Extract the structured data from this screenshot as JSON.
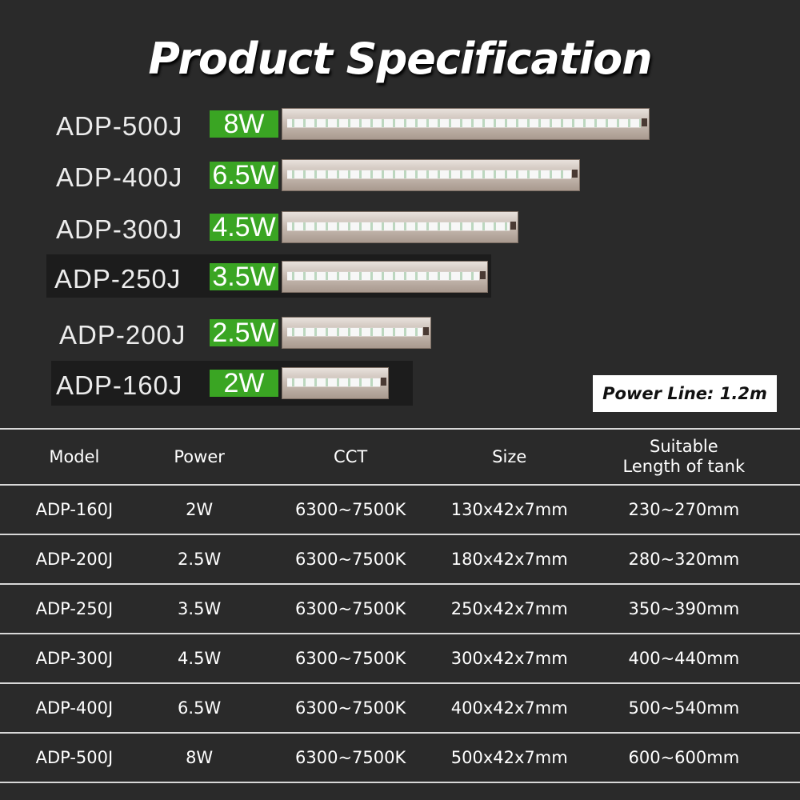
{
  "title": "Product Specification",
  "products": [
    {
      "model": "ADP-500J",
      "power": "8W"
    },
    {
      "model": "ADP-400J",
      "power": "6.5W"
    },
    {
      "model": "ADP-300J",
      "power": "4.5W"
    },
    {
      "model": "ADP-250J",
      "power": "3.5W"
    },
    {
      "model": "ADP-200J",
      "power": "2.5W"
    },
    {
      "model": "ADP-160J",
      "power": "2W"
    }
  ],
  "power_line": "Power Line: 1.2m",
  "table": {
    "headers": [
      "Model",
      "Power",
      "CCT",
      "Size",
      "Suitable\nLength of tank"
    ],
    "rows": [
      [
        "ADP-160J",
        "2W",
        "6300~7500K",
        "130x42x7mm",
        "230~270mm"
      ],
      [
        "ADP-200J",
        "2.5W",
        "6300~7500K",
        "180x42x7mm",
        "280~320mm"
      ],
      [
        "ADP-250J",
        "3.5W",
        "6300~7500K",
        "250x42x7mm",
        "350~390mm"
      ],
      [
        "ADP-300J",
        "4.5W",
        "6300~7500K",
        "300x42x7mm",
        "400~440mm"
      ],
      [
        "ADP-400J",
        "6.5W",
        "6300~7500K",
        "400x42x7mm",
        "500~540mm"
      ],
      [
        "ADP-500J",
        "8W",
        "6300~7500K",
        "500x42x7mm",
        "600~600mm"
      ]
    ]
  },
  "colors": {
    "background": "#2a2a2a",
    "badge": "#3aa523",
    "text": "#ffffff"
  }
}
